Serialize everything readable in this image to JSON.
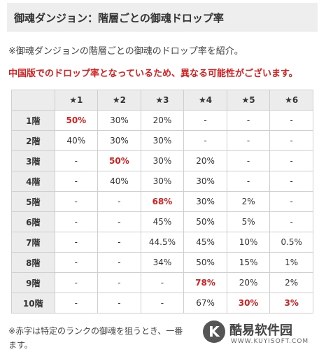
{
  "page": {
    "title": "御魂ダンジョン：階層ごとの御魂ドロップ率",
    "intro": "※御魂ダンジョンの階層ごとの御魂のドロップ率を紹介。",
    "notice": "中国版でのドロップ率となっているため、異なる可能性がございます。",
    "footnote_lines": [
      "※赤字は特定のランクの御魂を狙うとき、一番",
      "ます。"
    ]
  },
  "table": {
    "headers": [
      "",
      "★1",
      "★2",
      "★3",
      "★4",
      "★5",
      "★6"
    ],
    "rows": [
      {
        "floor": "1階",
        "cells": [
          "50%",
          "30%",
          "20%",
          "-",
          "-",
          "-"
        ],
        "highlight": [
          0
        ]
      },
      {
        "floor": "2階",
        "cells": [
          "40%",
          "30%",
          "30%",
          "-",
          "-",
          "-"
        ],
        "highlight": []
      },
      {
        "floor": "3階",
        "cells": [
          "-",
          "50%",
          "30%",
          "20%",
          "-",
          "-"
        ],
        "highlight": [
          1
        ]
      },
      {
        "floor": "4階",
        "cells": [
          "-",
          "40%",
          "30%",
          "30%",
          "-",
          "-"
        ],
        "highlight": []
      },
      {
        "floor": "5階",
        "cells": [
          "-",
          "-",
          "68%",
          "30%",
          "2%",
          "-"
        ],
        "highlight": [
          2
        ]
      },
      {
        "floor": "6階",
        "cells": [
          "-",
          "-",
          "45%",
          "50%",
          "5%",
          "-"
        ],
        "highlight": []
      },
      {
        "floor": "7階",
        "cells": [
          "-",
          "-",
          "44.5%",
          "45%",
          "10%",
          "0.5%"
        ],
        "highlight": []
      },
      {
        "floor": "8階",
        "cells": [
          "-",
          "-",
          "34%",
          "50%",
          "15%",
          "1%"
        ],
        "highlight": []
      },
      {
        "floor": "9階",
        "cells": [
          "-",
          "-",
          "-",
          "78%",
          "20%",
          "2%"
        ],
        "highlight": [
          3
        ]
      },
      {
        "floor": "10階",
        "cells": [
          "-",
          "-",
          "-",
          "67%",
          "30%",
          "3%"
        ],
        "highlight": [
          4,
          5
        ]
      }
    ]
  },
  "watermark": {
    "logo_letter": "K",
    "brand": "酷易软件园",
    "url": "WWW.KUYISOFT.COM"
  },
  "colors": {
    "highlight": "#d42020",
    "header_bg": "#ececec",
    "border": "#cfcfcf"
  }
}
